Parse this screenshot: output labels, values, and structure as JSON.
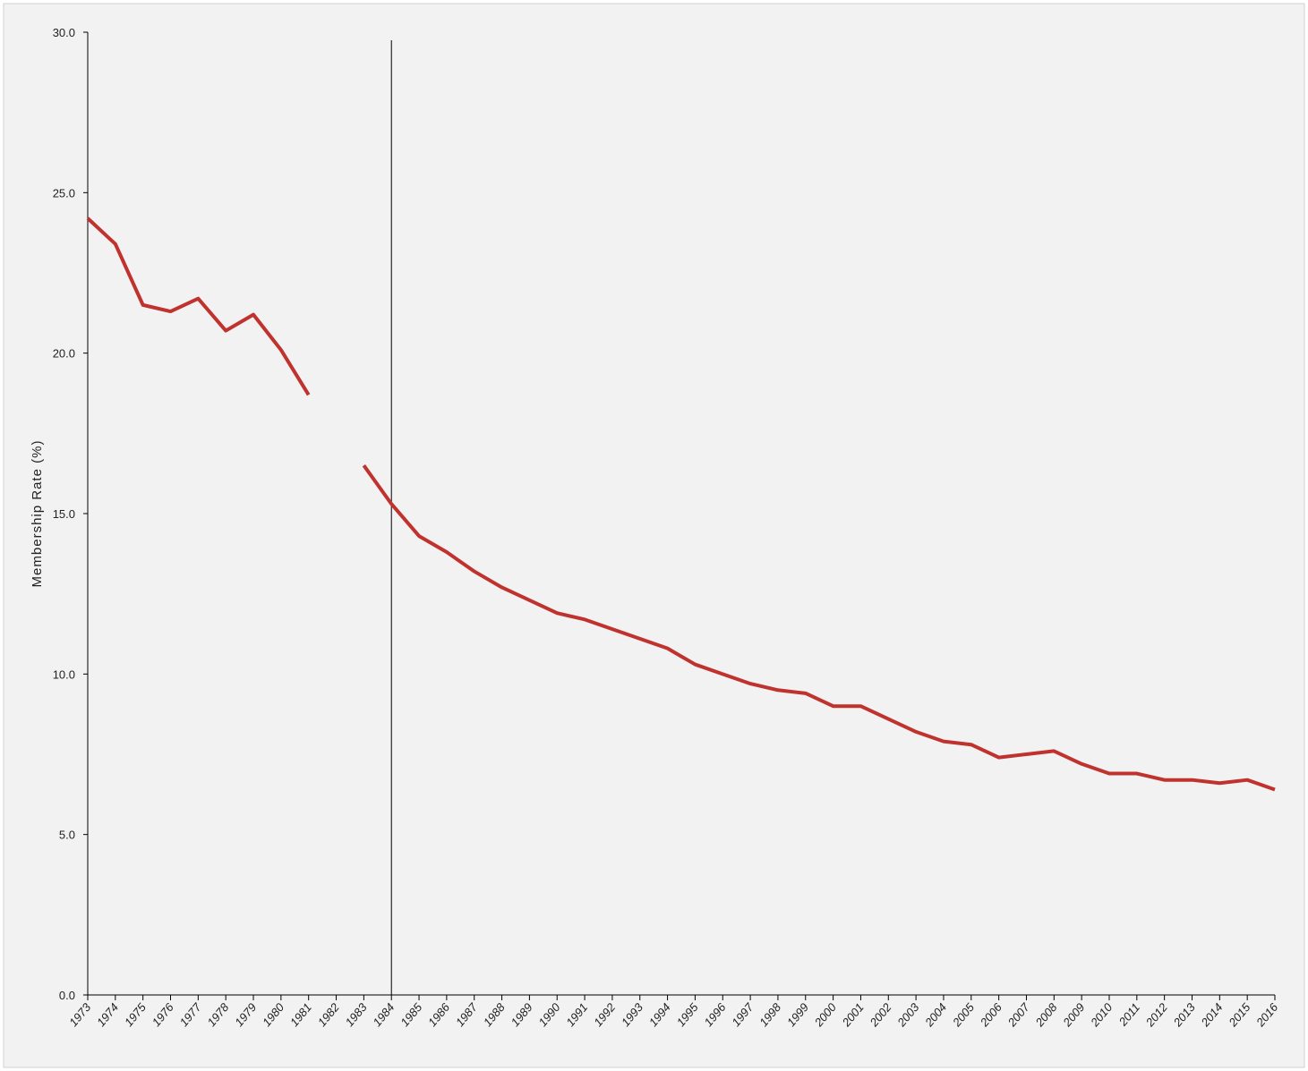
{
  "chart_data": {
    "type": "line",
    "y_label": "Membership Rate (%)",
    "x": [
      1973,
      1974,
      1975,
      1976,
      1977,
      1978,
      1979,
      1980,
      1981,
      1982,
      1983,
      1984,
      1985,
      1986,
      1987,
      1988,
      1989,
      1990,
      1991,
      1992,
      1993,
      1994,
      1995,
      1996,
      1997,
      1998,
      1999,
      2000,
      2001,
      2002,
      2003,
      2004,
      2005,
      2006,
      2007,
      2008,
      2009,
      2010,
      2011,
      2012,
      2013,
      2014,
      2015,
      2016
    ],
    "series": [
      {
        "color": "#c0322e",
        "values": [
          24.2,
          23.4,
          21.5,
          21.3,
          21.7,
          20.7,
          21.2,
          20.1,
          18.7,
          null,
          16.5,
          15.3,
          14.3,
          13.8,
          13.2,
          12.7,
          12.3,
          11.9,
          11.7,
          11.4,
          11.1,
          10.8,
          10.3,
          10.0,
          9.7,
          9.5,
          9.4,
          9.0,
          9.0,
          8.6,
          8.2,
          7.9,
          7.8,
          7.4,
          7.5,
          7.6,
          7.2,
          6.9,
          6.9,
          6.7,
          6.7,
          6.6,
          6.7,
          6.4
        ]
      }
    ],
    "xlim": [
      1973,
      2016
    ],
    "xticks": [
      1973,
      1974,
      1975,
      1976,
      1977,
      1978,
      1979,
      1980,
      1981,
      1982,
      1983,
      1984,
      1985,
      1986,
      1987,
      1988,
      1989,
      1990,
      1991,
      1992,
      1993,
      1994,
      1995,
      1996,
      1997,
      1998,
      1999,
      2000,
      2001,
      2002,
      2003,
      2004,
      2005,
      2006,
      2007,
      2008,
      2009,
      2010,
      2011,
      2012,
      2013,
      2014,
      2015,
      2016
    ],
    "ylim": [
      0,
      30
    ],
    "yticks": [
      {
        "value": 0,
        "label": "0.0"
      },
      {
        "value": 5,
        "label": "5.0"
      },
      {
        "value": 10,
        "label": "10.0"
      },
      {
        "value": 15,
        "label": "15.0"
      },
      {
        "value": 20,
        "label": "20.0"
      },
      {
        "value": 25,
        "label": "25.0"
      },
      {
        "value": 30,
        "label": "30.0"
      }
    ],
    "vlines": [
      1984
    ],
    "grid": false
  }
}
